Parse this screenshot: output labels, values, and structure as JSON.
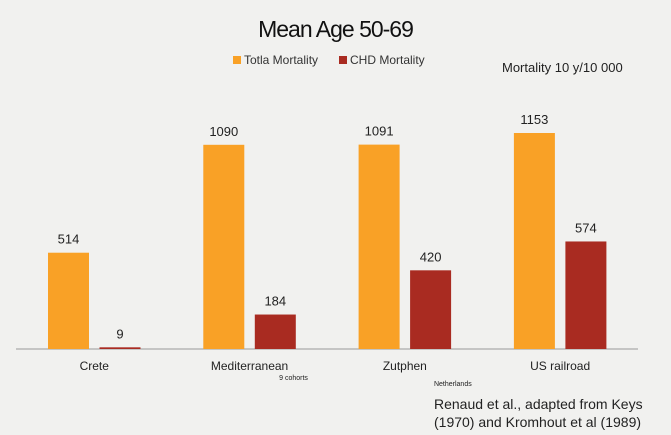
{
  "chart_data": {
    "type": "bar",
    "title": "Mean Age 50-69",
    "categories": [
      "Crete",
      "Mediterranean",
      "Zutphen",
      "US railroad"
    ],
    "category_notes": [
      "",
      "9 cohorts",
      "Netherlands",
      ""
    ],
    "series": [
      {
        "name": "Totla Mortality",
        "color": "#F9A126",
        "values": [
          514,
          1090,
          1091,
          1153
        ]
      },
      {
        "name": "CHD Mortality",
        "color": "#A92B21",
        "values": [
          9,
          184,
          420,
          574
        ]
      }
    ],
    "ylabel": "Mortality 10 y/10 000",
    "ylim": [
      0,
      1153
    ],
    "grid": false,
    "legend": "top",
    "source": [
      "Renaud et al., adapted from Keys",
      "(1970) and Kromhout et al (1989)"
    ]
  }
}
